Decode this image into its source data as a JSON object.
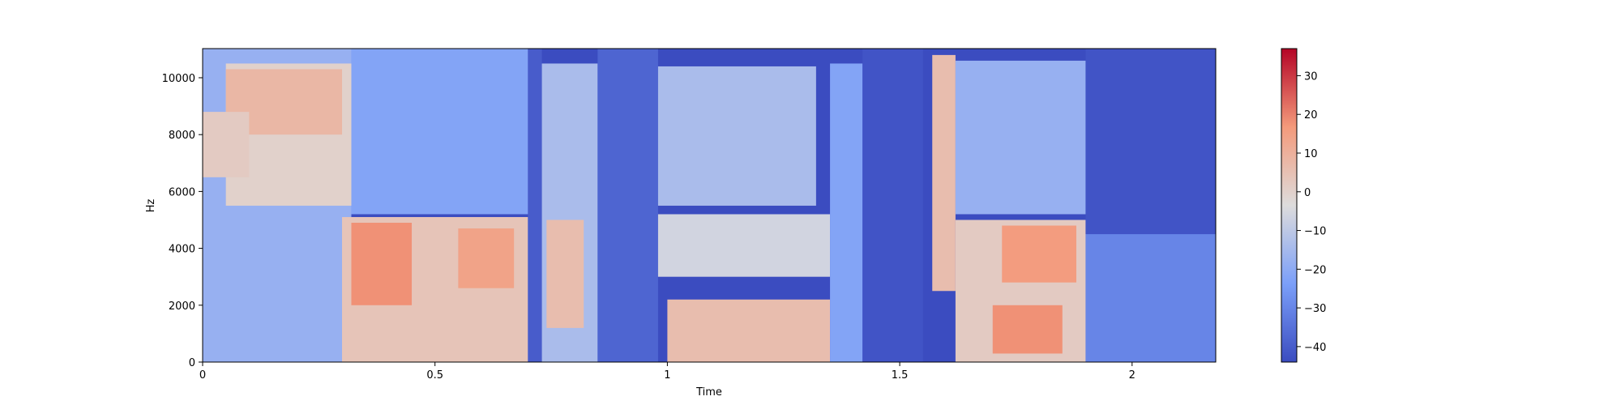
{
  "chart_data": [
    {
      "type": "heatmap",
      "subtype": "spectrogram",
      "title": "",
      "xlabel": "Time",
      "ylabel": "Hz",
      "xlim": [
        0,
        2.18
      ],
      "ylim": [
        0,
        11025
      ],
      "xticks": [
        0,
        0.5,
        1,
        1.5,
        2
      ],
      "xtick_labels": [
        "0",
        "0.5",
        "1",
        "1.5",
        "2"
      ],
      "yticks": [
        0,
        2000,
        4000,
        6000,
        8000,
        10000
      ],
      "ytick_labels": [
        "0",
        "2000",
        "4000",
        "6000",
        "8000",
        "10000"
      ],
      "grid": false,
      "colormap": "coolwarm",
      "colorbar": {
        "range": [
          -44,
          37
        ],
        "ticks": [
          -40,
          -30,
          -20,
          -10,
          0,
          10,
          20,
          30
        ],
        "tick_labels": [
          "−40",
          "−30",
          "−20",
          "−10",
          "0",
          "10",
          "20",
          "30"
        ]
      },
      "energy_regions_db": [
        {
          "t": [
            0.0,
            0.32
          ],
          "f": [
            0,
            11025
          ],
          "db": -18
        },
        {
          "t": [
            0.05,
            0.32
          ],
          "f": [
            5500,
            10500
          ],
          "db": 0
        },
        {
          "t": [
            0.05,
            0.3
          ],
          "f": [
            8000,
            10300
          ],
          "db": 8
        },
        {
          "t": [
            0.0,
            0.1
          ],
          "f": [
            6500,
            8800
          ],
          "db": 2
        },
        {
          "t": [
            0.32,
            0.7
          ],
          "f": [
            5200,
            11025
          ],
          "db": -22
        },
        {
          "t": [
            0.3,
            0.7
          ],
          "f": [
            0,
            5100
          ],
          "db": 4
        },
        {
          "t": [
            0.32,
            0.45
          ],
          "f": [
            2000,
            4900
          ],
          "db": 18
        },
        {
          "t": [
            0.55,
            0.67
          ],
          "f": [
            2600,
            4700
          ],
          "db": 14
        },
        {
          "t": [
            0.7,
            0.73
          ],
          "f": [
            0,
            11025
          ],
          "db": -40
        },
        {
          "t": [
            0.73,
            0.85
          ],
          "f": [
            0,
            10500
          ],
          "db": -14
        },
        {
          "t": [
            0.74,
            0.82
          ],
          "f": [
            1200,
            5000
          ],
          "db": 6
        },
        {
          "t": [
            0.85,
            0.98
          ],
          "f": [
            0,
            11025
          ],
          "db": -38
        },
        {
          "t": [
            0.98,
            1.32
          ],
          "f": [
            5500,
            10400
          ],
          "db": -14
        },
        {
          "t": [
            0.98,
            1.35
          ],
          "f": [
            3000,
            5200
          ],
          "db": -6
        },
        {
          "t": [
            1.0,
            1.35
          ],
          "f": [
            0,
            2200
          ],
          "db": 6
        },
        {
          "t": [
            1.35,
            1.42
          ],
          "f": [
            0,
            10500
          ],
          "db": -22
        },
        {
          "t": [
            1.42,
            1.55
          ],
          "f": [
            0,
            11025
          ],
          "db": -42
        },
        {
          "t": [
            1.57,
            1.62
          ],
          "f": [
            2500,
            10800
          ],
          "db": 6
        },
        {
          "t": [
            1.62,
            1.9
          ],
          "f": [
            5200,
            10600
          ],
          "db": -18
        },
        {
          "t": [
            1.62,
            1.9
          ],
          "f": [
            0,
            5000
          ],
          "db": 2
        },
        {
          "t": [
            1.72,
            1.88
          ],
          "f": [
            2800,
            4800
          ],
          "db": 16
        },
        {
          "t": [
            1.7,
            1.85
          ],
          "f": [
            300,
            2000
          ],
          "db": 18
        },
        {
          "t": [
            1.9,
            2.18
          ],
          "f": [
            0,
            4500
          ],
          "db": -30
        },
        {
          "t": [
            1.9,
            2.18
          ],
          "f": [
            4500,
            11025
          ],
          "db": -42
        }
      ]
    }
  ]
}
